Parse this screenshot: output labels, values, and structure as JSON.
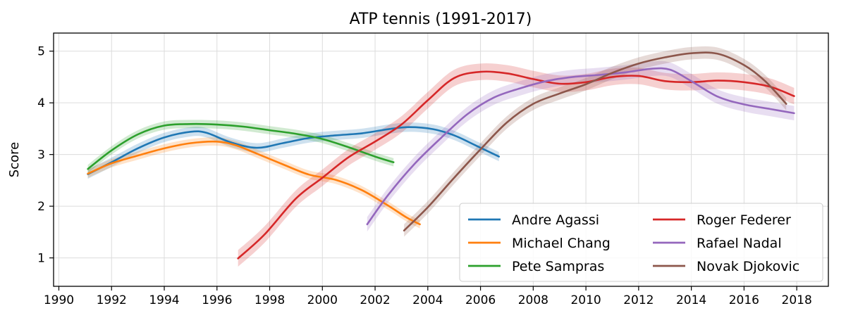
{
  "chart_data": {
    "type": "line",
    "title": "ATP tennis (1991-2017)",
    "xlabel": "",
    "ylabel": "Score",
    "xlim": [
      1989.8,
      2019.2
    ],
    "ylim": [
      0.45,
      5.35
    ],
    "xticks": [
      1990,
      1992,
      1994,
      1996,
      1998,
      2000,
      2002,
      2004,
      2006,
      2008,
      2010,
      2012,
      2014,
      2016,
      2018
    ],
    "yticks": [
      1,
      2,
      3,
      4,
      5
    ],
    "grid": true,
    "legend": {
      "position": "bottom-right",
      "columns": 2
    },
    "series": [
      {
        "name": "Andre Agassi",
        "color": "#1f77b4",
        "band": 0.09,
        "x": [
          1991.1,
          1992,
          1993,
          1994,
          1995,
          1995.6,
          1996.5,
          1997.5,
          1998.5,
          1999.5,
          2000.5,
          2001.5,
          2002.5,
          2003.3,
          2004.2,
          2005,
          2005.8,
          2006.7
        ],
        "y": [
          2.62,
          2.85,
          3.12,
          3.33,
          3.44,
          3.42,
          3.24,
          3.13,
          3.22,
          3.32,
          3.37,
          3.41,
          3.49,
          3.53,
          3.49,
          3.37,
          3.18,
          2.96
        ]
      },
      {
        "name": "Michael Chang",
        "color": "#ff7f0e",
        "band": 0.08,
        "x": [
          1991.1,
          1992,
          1993,
          1994,
          1995,
          1996,
          1996.7,
          1997.5,
          1998.5,
          1999.5,
          2000.5,
          2001.5,
          2002.5,
          2003.2,
          2003.7
        ],
        "y": [
          2.63,
          2.83,
          2.98,
          3.12,
          3.22,
          3.25,
          3.18,
          3.02,
          2.81,
          2.61,
          2.51,
          2.31,
          2.01,
          1.78,
          1.65
        ]
      },
      {
        "name": "Pete Sampras",
        "color": "#2ca02c",
        "band": 0.08,
        "x": [
          1991.1,
          1992,
          1993,
          1994,
          1995,
          1996,
          1997,
          1998,
          1999,
          2000,
          2001,
          2002,
          2002.7
        ],
        "y": [
          2.72,
          3.08,
          3.39,
          3.56,
          3.59,
          3.58,
          3.54,
          3.47,
          3.4,
          3.3,
          3.14,
          2.96,
          2.85
        ]
      },
      {
        "name": "Roger Federer",
        "color": "#d62728",
        "band": 0.16,
        "x": [
          1996.8,
          1997.8,
          1999,
          2000,
          2001,
          2002,
          2003,
          2004,
          2005,
          2006,
          2007,
          2008,
          2009,
          2010,
          2011,
          2012,
          2013,
          2014,
          2015,
          2016,
          2017,
          2017.9
        ],
        "y": [
          0.99,
          1.45,
          2.15,
          2.55,
          2.95,
          3.25,
          3.58,
          4.05,
          4.48,
          4.6,
          4.57,
          4.46,
          4.37,
          4.4,
          4.5,
          4.52,
          4.42,
          4.4,
          4.43,
          4.4,
          4.31,
          4.13
        ]
      },
      {
        "name": "Rafael Nadal",
        "color": "#9467bd",
        "band": 0.14,
        "x": [
          2001.7,
          2002.5,
          2003.5,
          2004.5,
          2005.5,
          2006.5,
          2007.5,
          2008.5,
          2009.5,
          2010.5,
          2011.5,
          2012.5,
          2013.2,
          2014,
          2015,
          2016,
          2017,
          2017.9
        ],
        "y": [
          1.65,
          2.22,
          2.82,
          3.32,
          3.78,
          4.1,
          4.28,
          4.42,
          4.5,
          4.54,
          4.59,
          4.66,
          4.64,
          4.42,
          4.12,
          3.97,
          3.88,
          3.8
        ]
      },
      {
        "name": "Novak Djokovic",
        "color": "#8c564b",
        "band": 0.12,
        "x": [
          2003.1,
          2004,
          2005,
          2006,
          2007,
          2008,
          2009,
          2010,
          2011,
          2012,
          2013,
          2014,
          2015,
          2016,
          2016.8,
          2017.6
        ],
        "y": [
          1.53,
          1.98,
          2.55,
          3.1,
          3.62,
          3.98,
          4.18,
          4.36,
          4.58,
          4.76,
          4.88,
          4.96,
          4.95,
          4.73,
          4.42,
          3.98
        ]
      }
    ]
  }
}
